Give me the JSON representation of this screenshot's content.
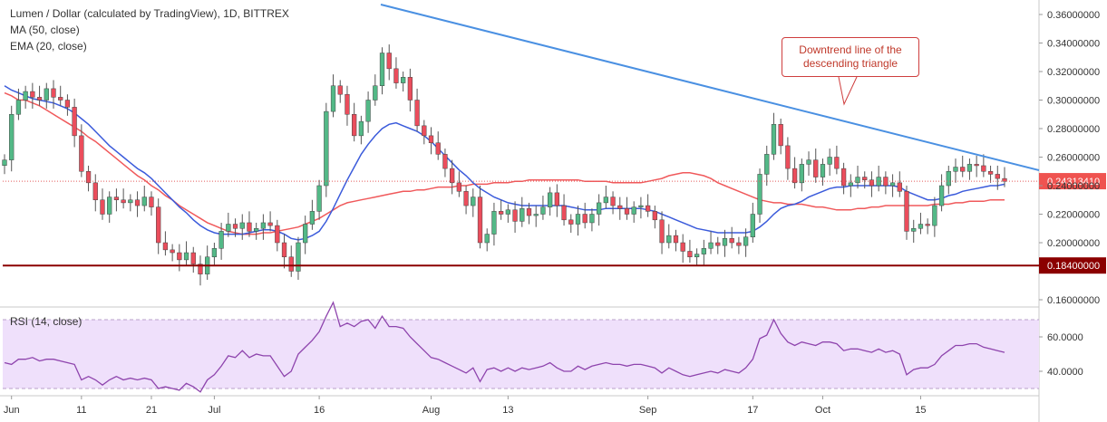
{
  "header": {
    "title": "Lumen / Dollar (calculated by TradingView), 1D, BITTREX",
    "ma_label": "MA (50, close)",
    "ema_label": "EMA (20, close)",
    "rsi_label": "RSI (14, close)"
  },
  "annotation": {
    "text_line1": "Downtrend line of the",
    "text_line2": "descending triangle"
  },
  "price_tags": {
    "current": "0.24313410",
    "support": "0.18400000"
  },
  "colors": {
    "up": "#53b987",
    "down": "#eb4d5c",
    "ma50": "#f0595b",
    "ema20": "#3b5bdb",
    "trendline": "#4a90e2",
    "support": "#8b0000",
    "rsi": "#8e44ad",
    "rsi_band": "#efe0fb"
  },
  "chart_data": {
    "type": "candlestick",
    "title": "Lumen / Dollar (calculated by TradingView), 1D, BITTREX",
    "price_axis": {
      "ticks": [
        "0.36000000",
        "0.34000000",
        "0.32000000",
        "0.30000000",
        "0.28000000",
        "0.26000000",
        "0.24000000",
        "0.22000000",
        "0.20000000",
        "0.16000000"
      ],
      "tick_values": [
        0.36,
        0.34,
        0.32,
        0.3,
        0.28,
        0.26,
        0.24,
        0.22,
        0.2,
        0.16
      ],
      "range": [
        0.153,
        0.368
      ]
    },
    "rsi_axis": {
      "ticks": [
        "60.0000",
        "40.0000"
      ],
      "tick_values": [
        60,
        40
      ],
      "range": [
        25,
        80
      ],
      "band": [
        30,
        70
      ]
    },
    "x_axis": {
      "labels": [
        "Jun",
        "11",
        "21",
        "Jul",
        "16",
        "Aug",
        "13",
        "Sep",
        "17",
        "Oct",
        "15"
      ],
      "label_bar_index": [
        1,
        11,
        21,
        30,
        45,
        61,
        72,
        92,
        107,
        117,
        131
      ]
    },
    "support_level": 0.184,
    "current_price": 0.2431341,
    "closes": [
      0.258,
      0.29,
      0.3,
      0.306,
      0.302,
      0.3,
      0.308,
      0.302,
      0.3,
      0.295,
      0.275,
      0.25,
      0.242,
      0.23,
      0.22,
      0.232,
      0.23,
      0.228,
      0.23,
      0.226,
      0.232,
      0.225,
      0.2,
      0.195,
      0.193,
      0.188,
      0.193,
      0.185,
      0.178,
      0.19,
      0.196,
      0.208,
      0.213,
      0.21,
      0.214,
      0.208,
      0.21,
      0.214,
      0.212,
      0.2,
      0.19,
      0.18,
      0.2,
      0.213,
      0.222,
      0.24,
      0.292,
      0.31,
      0.304,
      0.29,
      0.275,
      0.285,
      0.3,
      0.31,
      0.333,
      0.322,
      0.312,
      0.316,
      0.3,
      0.282,
      0.275,
      0.27,
      0.262,
      0.252,
      0.242,
      0.236,
      0.226,
      0.232,
      0.2,
      0.206,
      0.222,
      0.22,
      0.223,
      0.215,
      0.224,
      0.219,
      0.22,
      0.225,
      0.235,
      0.226,
      0.216,
      0.213,
      0.22,
      0.214,
      0.22,
      0.228,
      0.232,
      0.226,
      0.224,
      0.22,
      0.225,
      0.226,
      0.222,
      0.216,
      0.2,
      0.205,
      0.2,
      0.194,
      0.19,
      0.192,
      0.196,
      0.2,
      0.198,
      0.203,
      0.2,
      0.198,
      0.204,
      0.22,
      0.248,
      0.262,
      0.283,
      0.268,
      0.252,
      0.242,
      0.255,
      0.258,
      0.246,
      0.255,
      0.26,
      0.252,
      0.24,
      0.242,
      0.246,
      0.244,
      0.24,
      0.246,
      0.24,
      0.242,
      0.236,
      0.208,
      0.21,
      0.213,
      0.212,
      0.226,
      0.24,
      0.25,
      0.253,
      0.25,
      0.255,
      0.254,
      0.25,
      0.248,
      0.245,
      0.243
    ],
    "ma50": [
      0.305,
      0.303,
      0.3,
      0.3,
      0.298,
      0.296,
      0.293,
      0.29,
      0.287,
      0.284,
      0.281,
      0.278,
      0.274,
      0.271,
      0.267,
      0.263,
      0.259,
      0.255,
      0.251,
      0.247,
      0.244,
      0.24,
      0.237,
      0.233,
      0.23,
      0.226,
      0.223,
      0.22,
      0.217,
      0.214,
      0.212,
      0.21,
      0.208,
      0.207,
      0.206,
      0.206,
      0.206,
      0.207,
      0.207,
      0.208,
      0.209,
      0.21,
      0.211,
      0.213,
      0.215,
      0.217,
      0.22,
      0.223,
      0.226,
      0.228,
      0.229,
      0.23,
      0.231,
      0.232,
      0.233,
      0.234,
      0.235,
      0.236,
      0.236,
      0.237,
      0.237,
      0.238,
      0.239,
      0.239,
      0.239,
      0.24,
      0.24,
      0.241,
      0.241,
      0.241,
      0.242,
      0.242,
      0.242,
      0.243,
      0.243,
      0.244,
      0.244,
      0.244,
      0.244,
      0.244,
      0.244,
      0.244,
      0.244,
      0.243,
      0.243,
      0.243,
      0.243,
      0.242,
      0.242,
      0.242,
      0.242,
      0.242,
      0.243,
      0.244,
      0.245,
      0.247,
      0.248,
      0.249,
      0.249,
      0.248,
      0.247,
      0.245,
      0.242,
      0.24,
      0.238,
      0.236,
      0.234,
      0.232,
      0.23,
      0.229,
      0.228,
      0.228,
      0.227,
      0.227,
      0.227,
      0.226,
      0.225,
      0.225,
      0.224,
      0.223,
      0.223,
      0.223,
      0.224,
      0.224,
      0.225,
      0.225,
      0.226,
      0.226,
      0.226,
      0.226,
      0.226,
      0.226,
      0.226,
      0.227,
      0.227,
      0.227,
      0.228,
      0.228,
      0.229,
      0.229,
      0.229,
      0.23,
      0.23,
      0.23
    ],
    "ema20": [
      0.31,
      0.307,
      0.305,
      0.303,
      0.301,
      0.3,
      0.299,
      0.298,
      0.296,
      0.294,
      0.291,
      0.287,
      0.283,
      0.278,
      0.273,
      0.268,
      0.264,
      0.26,
      0.256,
      0.252,
      0.249,
      0.245,
      0.24,
      0.235,
      0.23,
      0.225,
      0.221,
      0.216,
      0.212,
      0.209,
      0.207,
      0.206,
      0.206,
      0.206,
      0.206,
      0.207,
      0.208,
      0.209,
      0.209,
      0.208,
      0.206,
      0.203,
      0.202,
      0.203,
      0.205,
      0.208,
      0.215,
      0.224,
      0.234,
      0.244,
      0.253,
      0.262,
      0.269,
      0.275,
      0.28,
      0.283,
      0.284,
      0.282,
      0.28,
      0.278,
      0.275,
      0.271,
      0.266,
      0.261,
      0.256,
      0.251,
      0.247,
      0.242,
      0.238,
      0.235,
      0.232,
      0.23,
      0.228,
      0.227,
      0.226,
      0.226,
      0.226,
      0.226,
      0.226,
      0.226,
      0.226,
      0.225,
      0.224,
      0.223,
      0.223,
      0.223,
      0.224,
      0.224,
      0.224,
      0.224,
      0.224,
      0.224,
      0.223,
      0.222,
      0.22,
      0.218,
      0.216,
      0.214,
      0.212,
      0.21,
      0.209,
      0.208,
      0.207,
      0.207,
      0.207,
      0.207,
      0.207,
      0.208,
      0.211,
      0.215,
      0.22,
      0.224,
      0.226,
      0.227,
      0.229,
      0.232,
      0.234,
      0.236,
      0.238,
      0.239,
      0.239,
      0.24,
      0.24,
      0.24,
      0.24,
      0.24,
      0.24,
      0.24,
      0.239,
      0.236,
      0.234,
      0.232,
      0.23,
      0.23,
      0.231,
      0.233,
      0.234,
      0.236,
      0.237,
      0.238,
      0.239,
      0.24,
      0.24,
      0.241
    ],
    "rsi": [
      45,
      44,
      47,
      47,
      48,
      46,
      47,
      47,
      46,
      45,
      44,
      35,
      37,
      35,
      32,
      35,
      37,
      35,
      36,
      35,
      36,
      35,
      30,
      31,
      30,
      29,
      33,
      31,
      28,
      35,
      38,
      43,
      49,
      48,
      52,
      48,
      50,
      49,
      49,
      43,
      37,
      40,
      50,
      54,
      58,
      63,
      72,
      80,
      66,
      68,
      66,
      69,
      70,
      65,
      72,
      66,
      66,
      65,
      60,
      56,
      52,
      48,
      47,
      45,
      43,
      41,
      39,
      42,
      34,
      41,
      42,
      40,
      42,
      40,
      42,
      41,
      42,
      43,
      45,
      42,
      40,
      40,
      43,
      41,
      43,
      44,
      45,
      44,
      44,
      43,
      44,
      44,
      43,
      42,
      39,
      42,
      40,
      38,
      37,
      38,
      39,
      40,
      39,
      41,
      40,
      39,
      42,
      47,
      59,
      61,
      70,
      62,
      57,
      55,
      57,
      56,
      55,
      57,
      57,
      56,
      52,
      53,
      53,
      52,
      51,
      53,
      51,
      52,
      50,
      38,
      41,
      42,
      42,
      44,
      49,
      52,
      55,
      55,
      56,
      56,
      54,
      53,
      52,
      51
    ]
  }
}
